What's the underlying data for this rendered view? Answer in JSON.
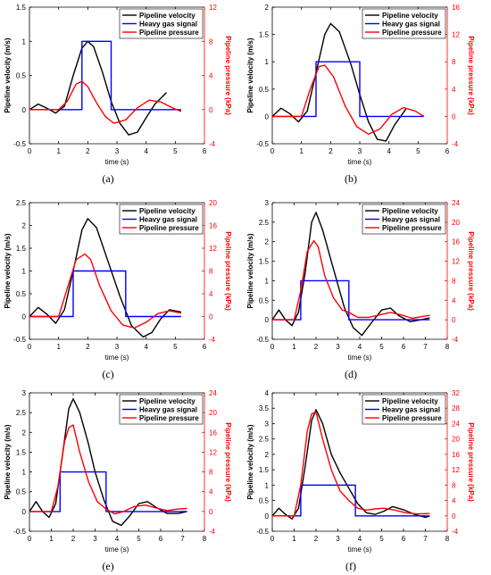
{
  "chart_data": [
    {
      "label": "(a)",
      "type": "line",
      "xlabel": "time (s)",
      "ylabel": "Pipeline velocity (m/s)",
      "y2label": "Pipeline pressure (kPa)",
      "xlim": [
        0,
        6
      ],
      "xticks": [
        0,
        1,
        2,
        3,
        4,
        5,
        6
      ],
      "ylim": [
        -0.5,
        1.5
      ],
      "yticks": [
        -0.5,
        0,
        0.5,
        1,
        1.5
      ],
      "y2lim": [
        -4,
        12
      ],
      "y2ticks": [
        -4,
        0,
        4,
        8,
        12
      ],
      "legend": "top-right",
      "series": [
        {
          "name": "Pipeline velocity",
          "color": "#000000",
          "axis": "left",
          "x": [
            0,
            0.3,
            0.6,
            0.9,
            1.2,
            1.5,
            1.8,
            2.0,
            2.2,
            2.5,
            2.8,
            3.1,
            3.4,
            3.7,
            4.0,
            4.3,
            4.7
          ],
          "y": [
            0,
            0.08,
            0.02,
            -0.05,
            0.05,
            0.5,
            0.9,
            1.0,
            0.92,
            0.55,
            0.12,
            -0.2,
            -0.37,
            -0.33,
            -0.12,
            0.08,
            0.25
          ]
        },
        {
          "name": "Heavy gas signal",
          "color": "#0000ff",
          "axis": "left",
          "x": [
            0,
            1.8,
            1.8,
            2.8,
            2.8,
            5.2
          ],
          "y": [
            0,
            0,
            1,
            1,
            0,
            0
          ]
        },
        {
          "name": "Pipeline pressure",
          "color": "#ff0000",
          "axis": "right",
          "x": [
            0,
            1.0,
            1.3,
            1.6,
            1.8,
            2.0,
            2.3,
            2.6,
            2.9,
            3.3,
            3.7,
            4.1,
            4.5,
            4.9,
            5.2
          ],
          "y": [
            0,
            0,
            1.0,
            3.0,
            3.3,
            2.7,
            0.8,
            -0.8,
            -1.6,
            -1.2,
            0.2,
            1.1,
            0.9,
            0.2,
            -0.2
          ]
        }
      ]
    },
    {
      "label": "(b)",
      "type": "line",
      "xlabel": "time (s)",
      "ylabel": "Pipeline velocity (m/s)",
      "y2label": "Pipeline pressure (kPa)",
      "xlim": [
        0,
        6
      ],
      "xticks": [
        0,
        1,
        2,
        3,
        4,
        5,
        6
      ],
      "ylim": [
        -0.5,
        2
      ],
      "yticks": [
        -0.5,
        0,
        0.5,
        1,
        1.5,
        2
      ],
      "y2lim": [
        -4,
        16
      ],
      "y2ticks": [
        -4,
        0,
        4,
        8,
        12,
        16
      ],
      "legend": "top-right",
      "series": [
        {
          "name": "Pipeline velocity",
          "color": "#000000",
          "axis": "left",
          "x": [
            0,
            0.3,
            0.6,
            0.9,
            1.2,
            1.5,
            1.8,
            2.0,
            2.3,
            2.7,
            3.0,
            3.3,
            3.6,
            3.9,
            4.2,
            4.6
          ],
          "y": [
            0,
            0.15,
            0.05,
            -0.1,
            0.1,
            0.8,
            1.5,
            1.7,
            1.55,
            0.95,
            0.4,
            -0.1,
            -0.42,
            -0.45,
            -0.15,
            0.15
          ]
        },
        {
          "name": "Heavy gas signal",
          "color": "#0000ff",
          "axis": "left",
          "x": [
            0,
            1.5,
            1.5,
            3.0,
            3.0,
            5.2
          ],
          "y": [
            0,
            0,
            1,
            1,
            0,
            0
          ]
        },
        {
          "name": "Pipeline pressure",
          "color": "#ff0000",
          "axis": "right",
          "x": [
            0,
            1.0,
            1.3,
            1.6,
            1.8,
            2.1,
            2.5,
            2.9,
            3.3,
            3.7,
            4.1,
            4.5,
            4.9,
            5.2
          ],
          "y": [
            0,
            0,
            4.0,
            7.3,
            7.5,
            5.8,
            1.5,
            -1.5,
            -2.6,
            -1.8,
            0.3,
            1.3,
            0.8,
            0
          ]
        }
      ]
    },
    {
      "label": "(c)",
      "type": "line",
      "xlabel": "time (s)",
      "ylabel": "Pipeline velocity (m/s)",
      "y2label": "Pipeline pressure (kPa)",
      "xlim": [
        0,
        6
      ],
      "xticks": [
        0,
        1,
        2,
        3,
        4,
        5,
        6
      ],
      "ylim": [
        -0.5,
        2.5
      ],
      "yticks": [
        -0.5,
        0,
        0.5,
        1,
        1.5,
        2,
        2.5
      ],
      "y2lim": [
        -4,
        20
      ],
      "y2ticks": [
        -4,
        0,
        4,
        8,
        12,
        16,
        20
      ],
      "legend": "top-right",
      "series": [
        {
          "name": "Pipeline velocity",
          "color": "#000000",
          "axis": "left",
          "x": [
            0,
            0.3,
            0.6,
            0.9,
            1.2,
            1.5,
            1.8,
            2.0,
            2.3,
            2.7,
            3.1,
            3.5,
            3.9,
            4.2,
            4.5,
            4.8,
            5.2
          ],
          "y": [
            0,
            0.2,
            0.05,
            -0.15,
            0.15,
            1.0,
            1.9,
            2.15,
            1.95,
            1.2,
            0.45,
            -0.2,
            -0.45,
            -0.35,
            -0.05,
            0.15,
            0.1
          ]
        },
        {
          "name": "Heavy gas signal",
          "color": "#0000ff",
          "axis": "left",
          "x": [
            0,
            1.5,
            1.5,
            3.3,
            3.3,
            5.2
          ],
          "y": [
            0,
            0,
            1,
            1,
            0,
            0
          ]
        },
        {
          "name": "Pipeline pressure",
          "color": "#ff0000",
          "axis": "right",
          "x": [
            0,
            1.0,
            1.3,
            1.6,
            1.9,
            2.1,
            2.4,
            2.8,
            3.2,
            3.6,
            4.0,
            4.4,
            4.8,
            5.2
          ],
          "y": [
            0,
            0,
            5.0,
            10.0,
            11.0,
            10.0,
            5.5,
            1.0,
            -1.5,
            -2.0,
            -1.0,
            0.5,
            1.0,
            0.6
          ]
        }
      ]
    },
    {
      "label": "(d)",
      "type": "line",
      "xlabel": "time (s)",
      "ylabel": "Pipeline velocity (m/s)",
      "y2label": "Pipeline pressure (kPa)",
      "xlim": [
        0,
        8
      ],
      "xticks": [
        0,
        1,
        2,
        3,
        4,
        5,
        6,
        7,
        8
      ],
      "ylim": [
        -0.5,
        3
      ],
      "yticks": [
        -0.5,
        0,
        0.5,
        1,
        1.5,
        2,
        2.5,
        3
      ],
      "y2lim": [
        -4,
        24
      ],
      "y2ticks": [
        -4,
        0,
        4,
        8,
        12,
        16,
        20,
        24
      ],
      "legend": "top-right",
      "series": [
        {
          "name": "Pipeline velocity",
          "color": "#000000",
          "axis": "left",
          "x": [
            0,
            0.3,
            0.6,
            0.9,
            1.2,
            1.5,
            1.8,
            2.0,
            2.3,
            2.7,
            3.0,
            3.3,
            3.7,
            4.1,
            4.5,
            5.0,
            5.4,
            5.8,
            6.3,
            6.8,
            7.2
          ],
          "y": [
            0,
            0.25,
            0.0,
            -0.15,
            0.2,
            1.2,
            2.5,
            2.75,
            2.3,
            1.5,
            0.9,
            0.3,
            -0.2,
            -0.4,
            -0.1,
            0.25,
            0.3,
            0.1,
            -0.05,
            0.0,
            0.05
          ]
        },
        {
          "name": "Heavy gas signal",
          "color": "#0000ff",
          "axis": "left",
          "x": [
            0,
            1.3,
            1.3,
            3.5,
            3.5,
            7.2
          ],
          "y": [
            0,
            0,
            1,
            1,
            0,
            0
          ]
        },
        {
          "name": "Pipeline pressure",
          "color": "#ff0000",
          "axis": "right",
          "x": [
            0,
            1.0,
            1.3,
            1.6,
            1.9,
            2.1,
            2.4,
            2.8,
            3.2,
            3.5,
            3.9,
            4.4,
            4.9,
            5.4,
            5.9,
            6.4,
            6.9,
            7.2
          ],
          "y": [
            0,
            0,
            6.0,
            14.0,
            16.2,
            15.0,
            9.0,
            4.5,
            2.0,
            1.5,
            0.5,
            0.5,
            1.0,
            1.5,
            1.0,
            0.3,
            0.7,
            0.9
          ]
        }
      ]
    },
    {
      "label": "(e)",
      "type": "line",
      "xlabel": "time (s)",
      "ylabel": "Pipeline velocity (m/s)",
      "y2label": "Pipeline pressure (kPa)",
      "xlim": [
        0,
        8
      ],
      "xticks": [
        0,
        1,
        2,
        3,
        4,
        5,
        6,
        7,
        8
      ],
      "ylim": [
        -0.5,
        3
      ],
      "yticks": [
        -0.5,
        0,
        0.5,
        1,
        1.5,
        2,
        2.5,
        3
      ],
      "y2lim": [
        -4,
        24
      ],
      "y2ticks": [
        -4,
        0,
        4,
        8,
        12,
        16,
        20,
        24
      ],
      "legend": "top-right",
      "series": [
        {
          "name": "Pipeline velocity",
          "color": "#000000",
          "axis": "left",
          "x": [
            0,
            0.3,
            0.6,
            0.9,
            1.2,
            1.5,
            1.8,
            2.0,
            2.3,
            2.7,
            3.0,
            3.4,
            3.8,
            4.2,
            4.6,
            5.0,
            5.4,
            5.8,
            6.3,
            6.8,
            7.2
          ],
          "y": [
            0,
            0.25,
            0.0,
            -0.15,
            0.2,
            1.4,
            2.6,
            2.85,
            2.5,
            1.7,
            1.0,
            0.3,
            -0.25,
            -0.35,
            -0.1,
            0.2,
            0.25,
            0.1,
            -0.05,
            -0.05,
            0.0
          ]
        },
        {
          "name": "Heavy gas signal",
          "color": "#0000ff",
          "axis": "left",
          "x": [
            0,
            1.4,
            1.4,
            3.5,
            3.5,
            7.2
          ],
          "y": [
            0,
            0,
            1,
            1,
            0,
            0
          ]
        },
        {
          "name": "Pipeline pressure",
          "color": "#ff0000",
          "axis": "right",
          "x": [
            0,
            1.0,
            1.3,
            1.6,
            1.8,
            2.0,
            2.3,
            2.7,
            3.1,
            3.5,
            3.9,
            4.3,
            4.8,
            5.3,
            5.8,
            6.3,
            6.8,
            7.2
          ],
          "y": [
            0,
            0,
            5.0,
            14.0,
            17.0,
            17.5,
            12.0,
            6.0,
            2.0,
            0.5,
            -0.5,
            0,
            1.0,
            1.3,
            0.7,
            0.2,
            0.5,
            0.6
          ]
        }
      ]
    },
    {
      "label": "(f)",
      "type": "line",
      "xlabel": "time (s)",
      "ylabel": "Pipeline velocity (m/s)",
      "y2label": "Pipeline pressure (kPa)",
      "xlim": [
        0,
        8
      ],
      "xticks": [
        0,
        1,
        2,
        3,
        4,
        5,
        6,
        7,
        8
      ],
      "ylim": [
        -0.5,
        4
      ],
      "yticks": [
        -0.5,
        0,
        0.5,
        1,
        1.5,
        2,
        2.5,
        3,
        3.5,
        4
      ],
      "y2lim": [
        -4,
        32
      ],
      "y2ticks": [
        -4,
        0,
        4,
        8,
        12,
        16,
        20,
        24,
        28,
        32
      ],
      "legend": "top-right",
      "series": [
        {
          "name": "Pipeline velocity",
          "color": "#000000",
          "axis": "left",
          "x": [
            0,
            0.3,
            0.6,
            0.9,
            1.2,
            1.5,
            1.8,
            2.0,
            2.3,
            2.7,
            3.1,
            3.5,
            3.9,
            4.3,
            4.7,
            5.1,
            5.5,
            6.0,
            6.5,
            7.0,
            7.2
          ],
          "y": [
            0,
            0.25,
            0.05,
            -0.1,
            0.25,
            1.6,
            3.1,
            3.45,
            3.0,
            2.0,
            1.4,
            0.9,
            0.4,
            0.1,
            0.05,
            0.15,
            0.3,
            0.2,
            0.05,
            -0.05,
            0.0
          ]
        },
        {
          "name": "Heavy gas signal",
          "color": "#0000ff",
          "axis": "left",
          "x": [
            0,
            1.3,
            1.3,
            3.8,
            3.8,
            7.2
          ],
          "y": [
            0,
            0,
            1,
            1,
            0,
            0
          ]
        },
        {
          "name": "Pipeline pressure",
          "color": "#ff0000",
          "axis": "right",
          "x": [
            0,
            1.0,
            1.3,
            1.6,
            1.8,
            2.0,
            2.3,
            2.7,
            3.1,
            3.5,
            3.9,
            4.3,
            4.7,
            5.1,
            5.6,
            6.1,
            6.6,
            7.2
          ],
          "y": [
            0,
            0,
            8.0,
            22.0,
            26.5,
            27.0,
            20.0,
            12.0,
            6.5,
            4.0,
            2.0,
            1.5,
            1.8,
            2.0,
            1.5,
            0.8,
            0.5,
            0.6
          ]
        }
      ]
    }
  ]
}
